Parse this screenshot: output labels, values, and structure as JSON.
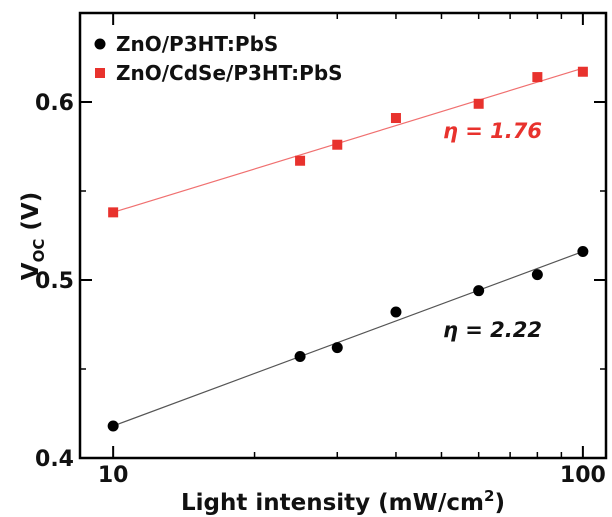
{
  "chart_data": {
    "type": "scatter",
    "xscale": "log",
    "xlim": [
      8.5,
      112
    ],
    "ylim": [
      0.4,
      0.65
    ],
    "grid": false,
    "legend_position": "top-left",
    "xticks": [
      10,
      100
    ],
    "xtick_labels": [
      "10",
      "100"
    ],
    "yticks": [
      0.4,
      0.5,
      0.6
    ],
    "ytick_labels": [
      "0.4",
      "0.5",
      "0.6"
    ],
    "xlabel": "Light intensity (mW/cm",
    "xlabel_sup": "2",
    "xlabel_end": ")",
    "ylabel_main": "V",
    "ylabel_sub": "OC",
    "ylabel_end": " (V)",
    "series": [
      {
        "name": "ZnO/P3HT:PbS",
        "marker": "circle",
        "color": "#000000",
        "x": [
          10,
          25,
          30,
          40,
          60,
          80,
          100
        ],
        "y": [
          0.418,
          0.457,
          0.462,
          0.482,
          0.494,
          0.503,
          0.516
        ],
        "fit": {
          "x": [
            10,
            100
          ],
          "y": [
            0.418,
            0.516
          ],
          "color": "#555555"
        },
        "annotation": "η = 2.22",
        "annotation_color": "#111111"
      },
      {
        "name": "ZnO/CdSe/P3HT:PbS",
        "marker": "square",
        "color": "#e8322d",
        "x": [
          10,
          25,
          30,
          40,
          60,
          80,
          100
        ],
        "y": [
          0.538,
          0.567,
          0.576,
          0.591,
          0.599,
          0.614,
          0.617
        ],
        "fit": {
          "x": [
            10,
            100
          ],
          "y": [
            0.538,
            0.619
          ],
          "color": "#f07070"
        },
        "annotation": "η = 1.76",
        "annotation_color": "#e8322d"
      }
    ]
  }
}
